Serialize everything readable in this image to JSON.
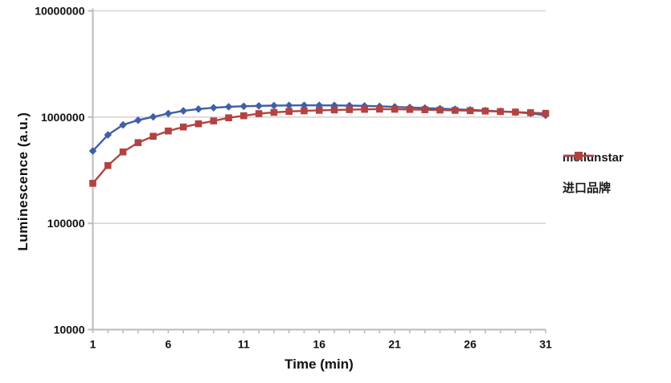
{
  "axes": {
    "y_title": "Luminescence (a.u.)",
    "x_title": "Time (min)"
  },
  "legend": [
    {
      "label": "meilunstar",
      "series": "meilunstar"
    },
    {
      "label": "进口品牌",
      "series": "imported"
    }
  ],
  "colors": {
    "meilunstar": "#3f5fa8",
    "imported": "#b24341",
    "gridline": "#d8d4d1",
    "axis": "#bfbab6",
    "tick_text": "#111111"
  },
  "chart_data": {
    "type": "line",
    "title": "",
    "xlabel": "Time (min)",
    "ylabel": "Luminescence (a.u.)",
    "x": [
      1,
      2,
      3,
      4,
      5,
      6,
      7,
      8,
      9,
      10,
      11,
      12,
      13,
      14,
      15,
      16,
      17,
      18,
      19,
      20,
      21,
      22,
      23,
      24,
      25,
      26,
      27,
      28,
      29,
      30,
      31
    ],
    "series": [
      {
        "name": "meilunstar",
        "marker": "diamond",
        "color": "#3f5fa8",
        "values": [
          480000,
          680000,
          845000,
          935000,
          1005000,
          1080000,
          1145000,
          1190000,
          1225000,
          1250000,
          1265000,
          1275000,
          1283000,
          1288000,
          1290000,
          1290000,
          1288000,
          1283000,
          1275000,
          1262000,
          1248000,
          1232000,
          1216000,
          1200000,
          1185000,
          1170000,
          1152000,
          1133000,
          1112000,
          1085000,
          1040000
        ]
      },
      {
        "name": "进口品牌",
        "marker": "square",
        "color": "#b24341",
        "values": [
          238000,
          350000,
          470000,
          575000,
          660000,
          740000,
          807000,
          865000,
          920000,
          985000,
          1030000,
          1078000,
          1108000,
          1130000,
          1145000,
          1158000,
          1168000,
          1176000,
          1183000,
          1188000,
          1185000,
          1180000,
          1173000,
          1165000,
          1157000,
          1150000,
          1140000,
          1128000,
          1115000,
          1100000,
          1085000
        ]
      }
    ],
    "x_major_ticks": [
      1,
      6,
      11,
      16,
      21,
      26,
      31
    ],
    "x_minor_tick_step": 1,
    "xlim": [
      1,
      31
    ],
    "y_scale": "log",
    "ylim": [
      10000,
      10000000
    ],
    "y_tick_labels": [
      "10000",
      "100000",
      "1000000",
      "10000000"
    ],
    "grid": "horizontal-decades",
    "legend_position": "right"
  }
}
